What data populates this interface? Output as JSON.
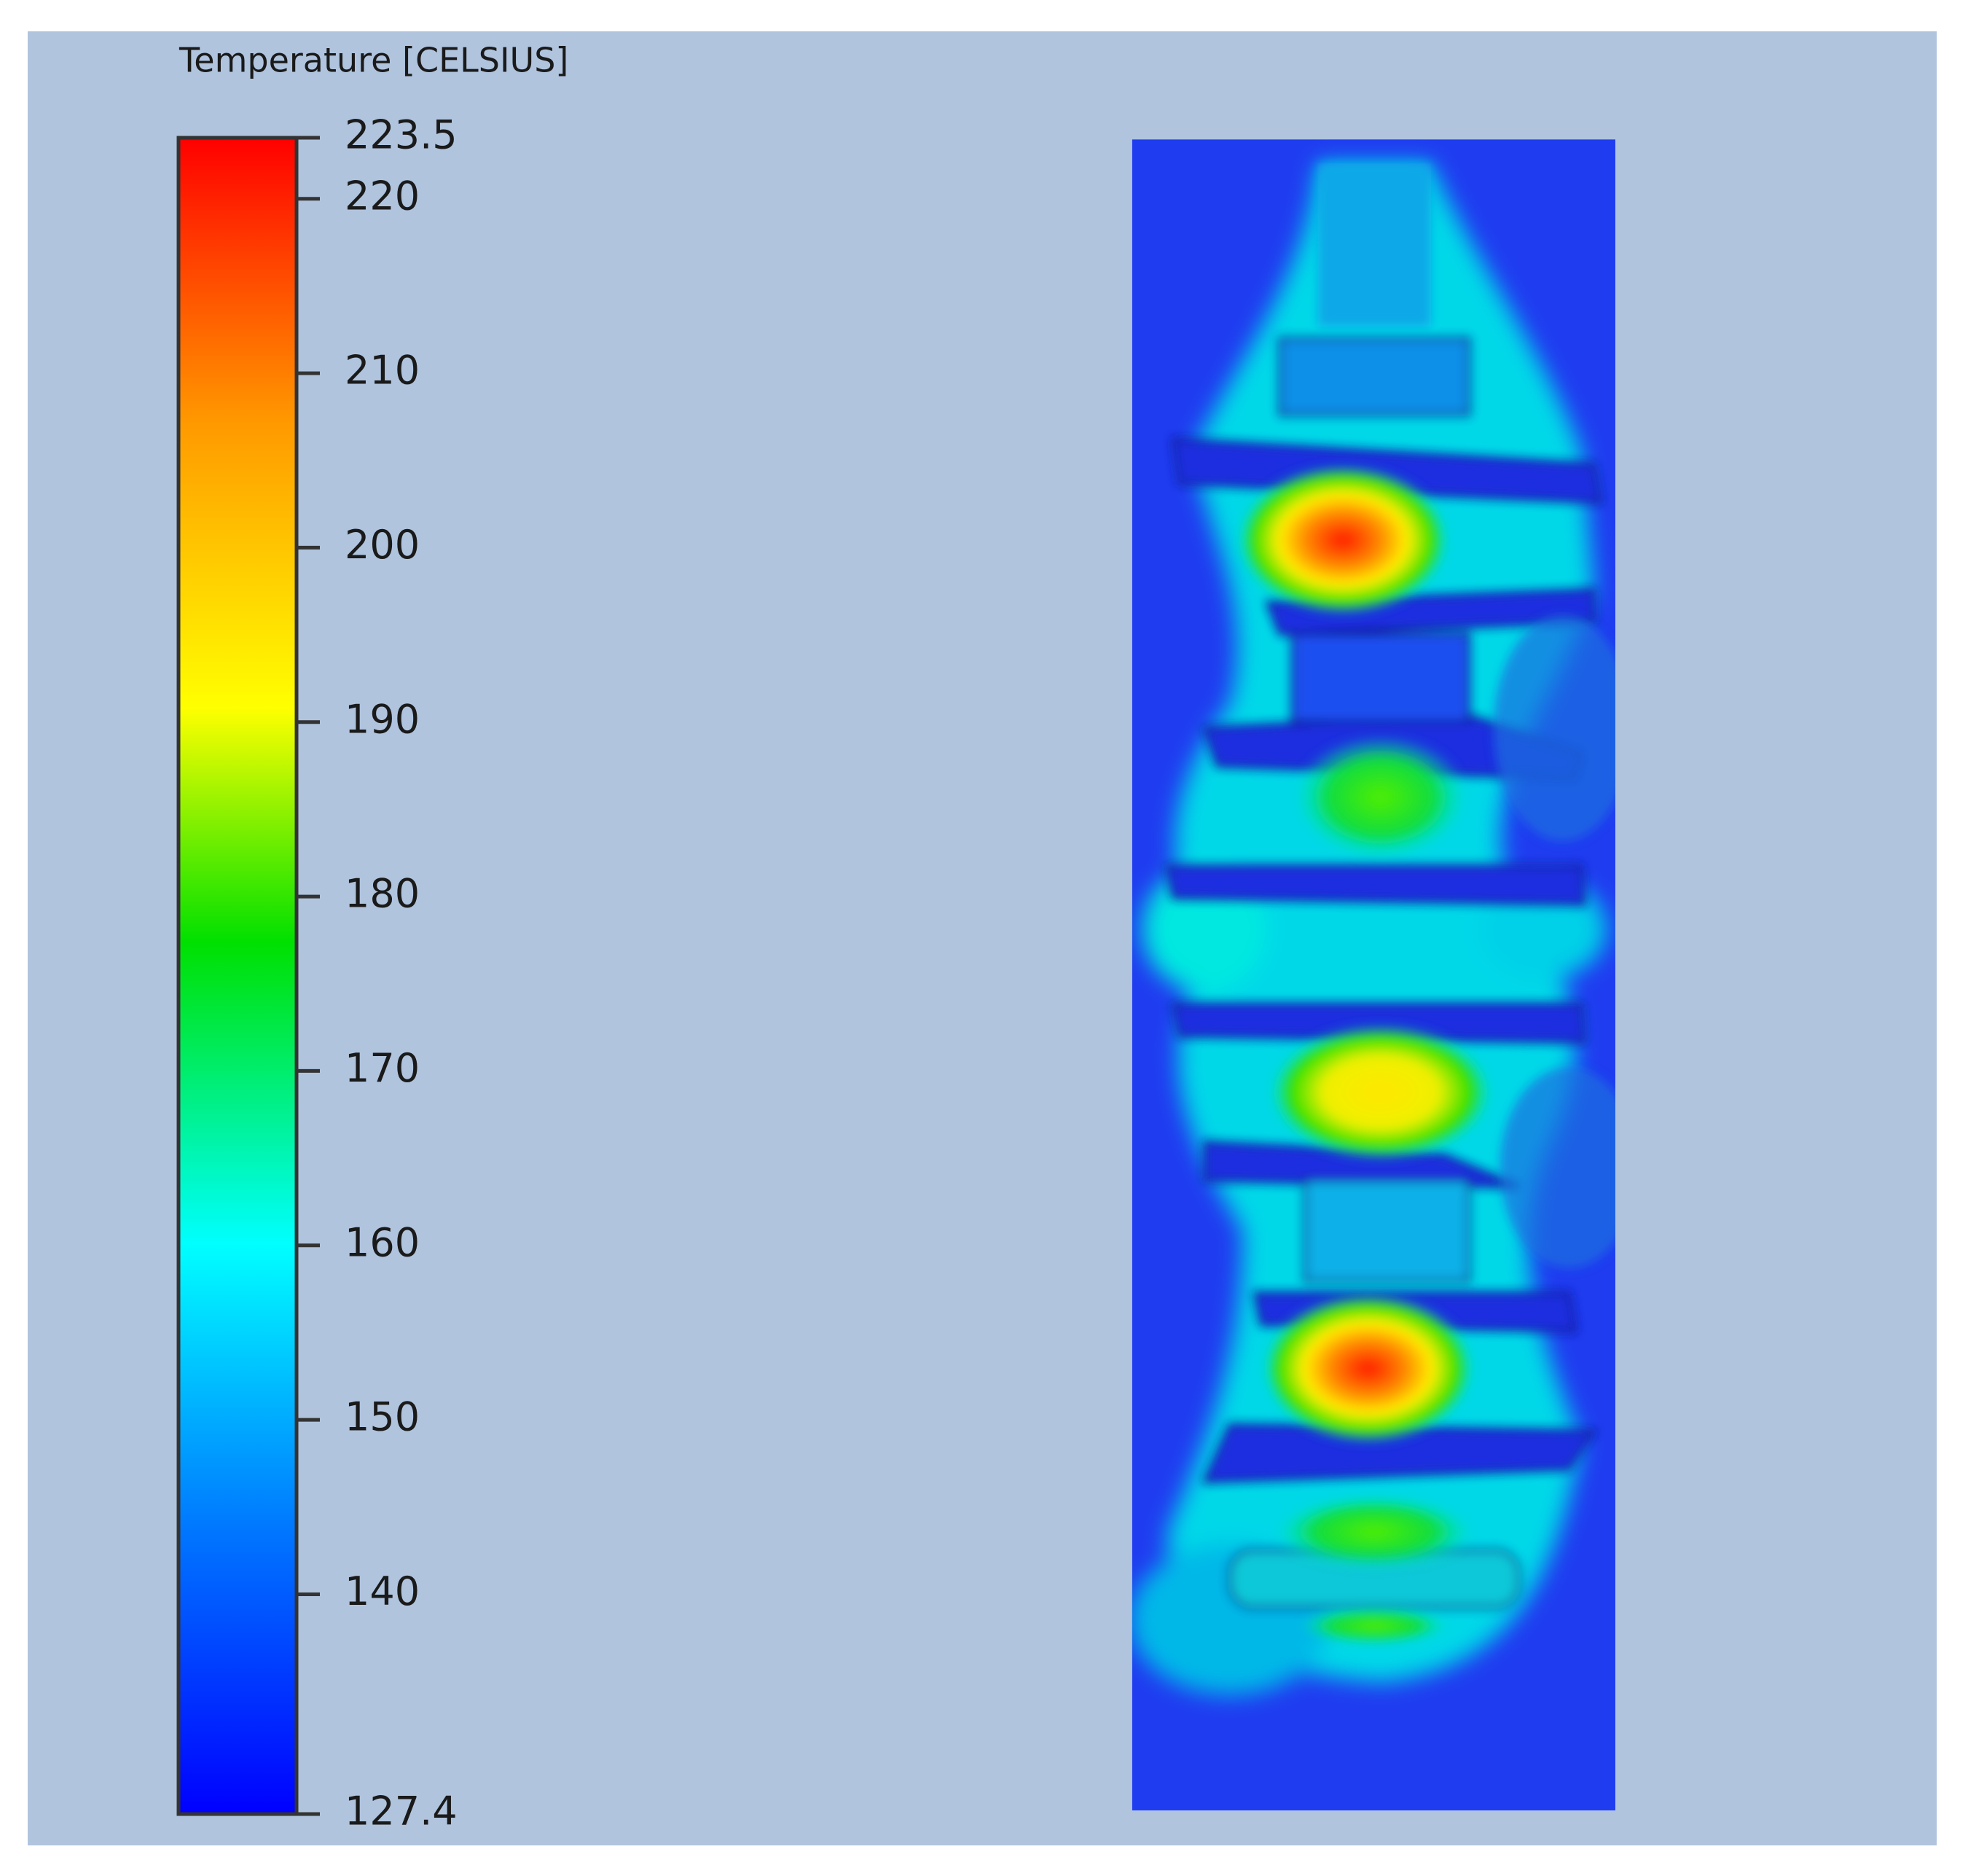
{
  "chart_data": {
    "type": "contour",
    "title": "Temperature [CELSIUS]",
    "zlim": [
      127.4,
      223.5
    ],
    "zticks": [
      127.4,
      140,
      150,
      160,
      170,
      180,
      190,
      200,
      210,
      220,
      223.5
    ]
  }
}
